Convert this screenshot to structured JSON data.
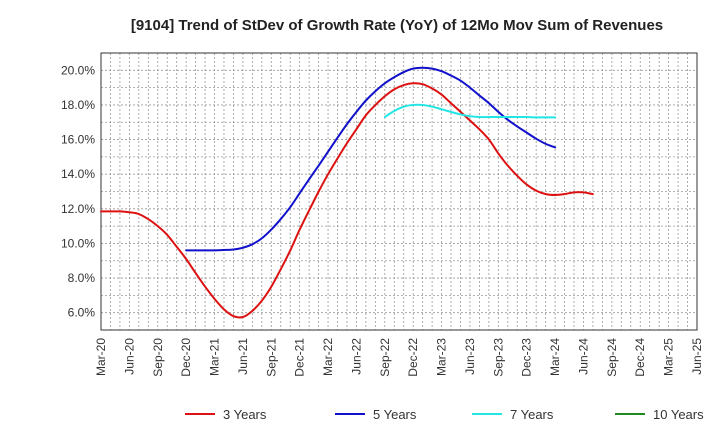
{
  "chart_data": {
    "type": "line",
    "title": "[9104]  Trend of StDev of Growth Rate (YoY) of 12Mo Mov Sum of Revenues",
    "xlabel": "",
    "ylabel": "",
    "ylim": [
      5.0,
      21.0
    ],
    "yticks": [
      6.0,
      8.0,
      10.0,
      12.0,
      14.0,
      16.0,
      18.0,
      20.0
    ],
    "ytick_labels": [
      "6.0%",
      "8.0%",
      "10.0%",
      "12.0%",
      "14.0%",
      "16.0%",
      "18.0%",
      "20.0%"
    ],
    "categories": [
      "Mar-20",
      "Jun-20",
      "Sep-20",
      "Dec-20",
      "Mar-21",
      "Jun-21",
      "Sep-21",
      "Dec-21",
      "Mar-22",
      "Jun-22",
      "Sep-22",
      "Dec-22",
      "Mar-23",
      "Jun-23",
      "Sep-23",
      "Dec-23",
      "Mar-24",
      "Jun-24",
      "Sep-24",
      "Dec-24",
      "Mar-25",
      "Jun-25"
    ],
    "grid": true,
    "legend_position": "bottom",
    "series": [
      {
        "name": "3 Years",
        "color": "#dd1111",
        "points": [
          [
            0,
            11.85
          ],
          [
            0.33,
            11.85
          ],
          [
            0.67,
            11.85
          ],
          [
            1,
            11.8
          ],
          [
            1.33,
            11.7
          ],
          [
            1.67,
            11.4
          ],
          [
            2,
            11.0
          ],
          [
            2.33,
            10.5
          ],
          [
            2.67,
            9.8
          ],
          [
            3,
            9.1
          ],
          [
            3.33,
            8.3
          ],
          [
            3.67,
            7.5
          ],
          [
            4,
            6.8
          ],
          [
            4.33,
            6.2
          ],
          [
            4.67,
            5.8
          ],
          [
            5,
            5.75
          ],
          [
            5.33,
            6.1
          ],
          [
            5.67,
            6.7
          ],
          [
            6,
            7.5
          ],
          [
            6.33,
            8.5
          ],
          [
            6.67,
            9.6
          ],
          [
            7,
            10.8
          ],
          [
            7.33,
            11.9
          ],
          [
            7.67,
            13.0
          ],
          [
            8,
            14.0
          ],
          [
            8.33,
            14.9
          ],
          [
            8.67,
            15.8
          ],
          [
            9,
            16.6
          ],
          [
            9.33,
            17.4
          ],
          [
            9.67,
            18.0
          ],
          [
            10,
            18.5
          ],
          [
            10.33,
            18.9
          ],
          [
            10.67,
            19.15
          ],
          [
            11,
            19.25
          ],
          [
            11.33,
            19.2
          ],
          [
            11.67,
            18.95
          ],
          [
            12,
            18.6
          ],
          [
            12.33,
            18.1
          ],
          [
            12.67,
            17.6
          ],
          [
            13,
            17.1
          ],
          [
            13.33,
            16.6
          ],
          [
            13.67,
            16.0
          ],
          [
            14,
            15.2
          ],
          [
            14.33,
            14.5
          ],
          [
            14.67,
            13.9
          ],
          [
            15,
            13.4
          ],
          [
            15.33,
            13.05
          ],
          [
            15.67,
            12.85
          ],
          [
            16,
            12.8
          ],
          [
            16.33,
            12.85
          ],
          [
            16.67,
            12.95
          ],
          [
            17,
            12.95
          ],
          [
            17.33,
            12.85
          ]
        ]
      },
      {
        "name": "5 Years",
        "color": "#1111cc",
        "points": [
          [
            3,
            9.6
          ],
          [
            3.33,
            9.6
          ],
          [
            3.67,
            9.6
          ],
          [
            4,
            9.6
          ],
          [
            4.33,
            9.62
          ],
          [
            4.67,
            9.65
          ],
          [
            5,
            9.75
          ],
          [
            5.33,
            9.95
          ],
          [
            5.67,
            10.3
          ],
          [
            6,
            10.8
          ],
          [
            6.33,
            11.4
          ],
          [
            6.67,
            12.1
          ],
          [
            7,
            12.9
          ],
          [
            7.33,
            13.7
          ],
          [
            7.67,
            14.5
          ],
          [
            8,
            15.3
          ],
          [
            8.33,
            16.1
          ],
          [
            8.67,
            16.9
          ],
          [
            9,
            17.6
          ],
          [
            9.33,
            18.25
          ],
          [
            9.67,
            18.8
          ],
          [
            10,
            19.25
          ],
          [
            10.33,
            19.6
          ],
          [
            10.67,
            19.9
          ],
          [
            11,
            20.1
          ],
          [
            11.33,
            20.15
          ],
          [
            11.67,
            20.1
          ],
          [
            12,
            19.95
          ],
          [
            12.33,
            19.7
          ],
          [
            12.67,
            19.4
          ],
          [
            13,
            19.0
          ],
          [
            13.33,
            18.55
          ],
          [
            13.67,
            18.1
          ],
          [
            14,
            17.6
          ],
          [
            14.33,
            17.15
          ],
          [
            14.67,
            16.75
          ],
          [
            15,
            16.4
          ],
          [
            15.33,
            16.05
          ],
          [
            15.67,
            15.75
          ],
          [
            16,
            15.55
          ]
        ]
      },
      {
        "name": "7 Years",
        "color": "#22e5e5",
        "points": [
          [
            10,
            17.3
          ],
          [
            10.33,
            17.65
          ],
          [
            10.67,
            17.9
          ],
          [
            11,
            18.0
          ],
          [
            11.33,
            18.0
          ],
          [
            11.67,
            17.9
          ],
          [
            12,
            17.75
          ],
          [
            12.33,
            17.6
          ],
          [
            12.67,
            17.45
          ],
          [
            13,
            17.35
          ],
          [
            13.33,
            17.3
          ],
          [
            13.67,
            17.3
          ],
          [
            14,
            17.3
          ],
          [
            14.33,
            17.3
          ],
          [
            14.67,
            17.3
          ],
          [
            15,
            17.3
          ],
          [
            15.33,
            17.28
          ],
          [
            15.67,
            17.28
          ],
          [
            16,
            17.28
          ]
        ]
      },
      {
        "name": "10 Years",
        "color": "#228822",
        "points": []
      }
    ]
  }
}
